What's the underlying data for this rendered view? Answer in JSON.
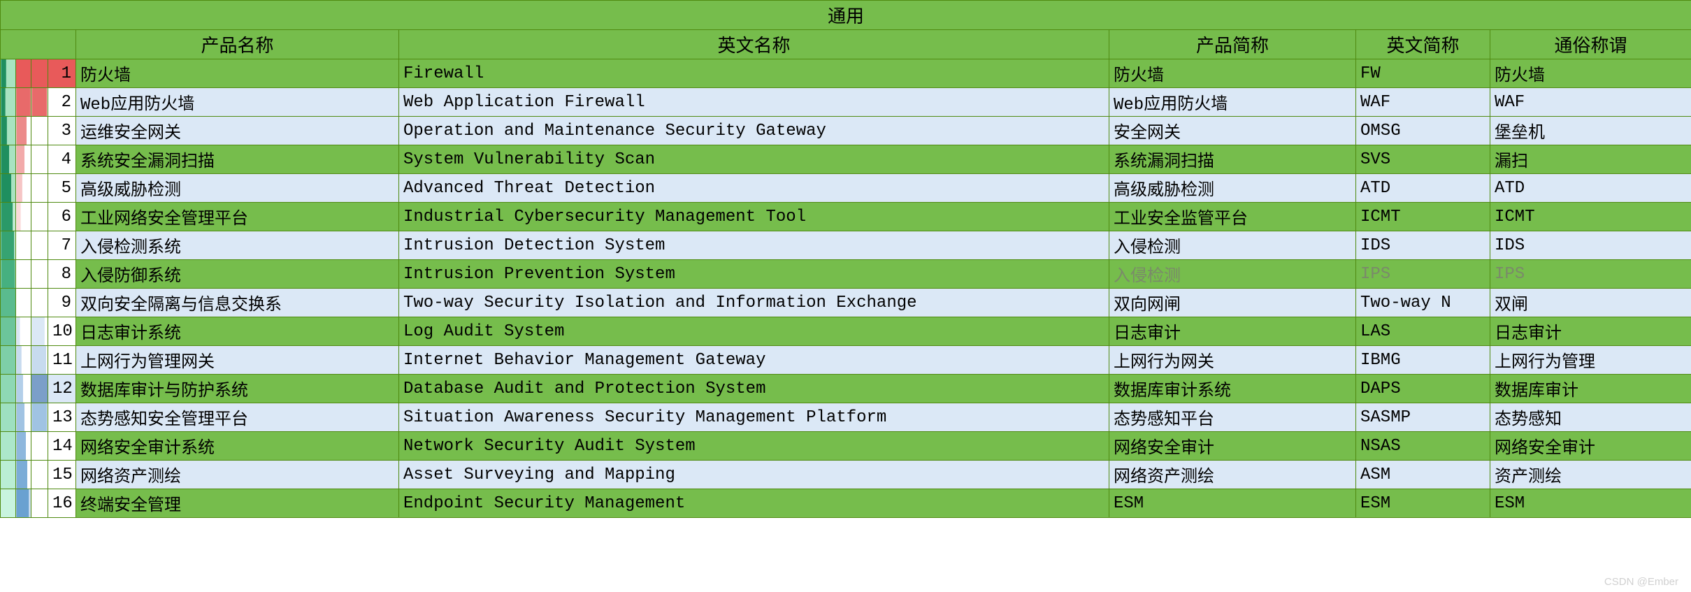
{
  "title": "通用",
  "headers": {
    "product_name": "产品名称",
    "english_name": "英文名称",
    "product_abbr": "产品简称",
    "english_abbr": "英文简称",
    "common_name": "通俗称谓"
  },
  "colors": {
    "green_row": "#76bd4c",
    "blue_row": "#dbe8f6",
    "border": "#4f8a10",
    "text": "#000000",
    "muted_text": "#7a8a6a",
    "idx_green_dark": "#1f8f5f",
    "idx_green_light": "#a8e3c1",
    "idx_red_dark": "#e85a5a",
    "idx_red_light": "#ffffff",
    "idx_blue_mid": "#7b9fc9",
    "idx_blue_light": "#dbe8f6",
    "white": "#ffffff"
  },
  "index_gradients": [
    {
      "col1": [
        "#1f8f5f",
        "#a8e3c1",
        0.35
      ],
      "col2": [
        "#e85a5a",
        "#e85a5a",
        1.0
      ],
      "col3": [
        "#e85a5a",
        "#e85a5a",
        1.0
      ]
    },
    {
      "col1": [
        "#1f8f5f",
        "#a8e3c1",
        0.3
      ],
      "col2": [
        "#e86a6a",
        "#f6b6b6",
        0.95
      ],
      "col3": [
        "#e86a6a",
        "#ffffff",
        0.95
      ]
    },
    {
      "col1": [
        "#1f8f5f",
        "#a8e3c1",
        0.4
      ],
      "col2": [
        "#ec8a8a",
        "#ffffff",
        0.7
      ],
      "col3": [
        "#ffffff",
        "#ffffff",
        1.0
      ]
    },
    {
      "col1": [
        "#1f8f5f",
        "#a8e3c1",
        0.55
      ],
      "col2": [
        "#f2aaaa",
        "#ffffff",
        0.55
      ],
      "col3": [
        "#ffffff",
        "#ffffff",
        1.0
      ]
    },
    {
      "col1": [
        "#1f8f5f",
        "#a8e3c1",
        0.7
      ],
      "col2": [
        "#f6c5c5",
        "#ffffff",
        0.4
      ],
      "col3": [
        "#ffffff",
        "#ffffff",
        1.0
      ]
    },
    {
      "col1": [
        "#2a9968",
        "#c0ecd3",
        0.8
      ],
      "col2": [
        "#fadada",
        "#ffffff",
        0.3
      ],
      "col3": [
        "#ffffff",
        "#ffffff",
        1.0
      ]
    },
    {
      "col1": [
        "#36a372",
        "#d3f2e0",
        0.9
      ],
      "col2": [
        "#ffffff",
        "#ffffff",
        1.0
      ],
      "col3": [
        "#ffffff",
        "#ffffff",
        1.0
      ]
    },
    {
      "col1": [
        "#46b080",
        "#e2f7eb",
        0.95
      ],
      "col2": [
        "#ffffff",
        "#ffffff",
        1.0
      ],
      "col3": [
        "#ffffff",
        "#ffffff",
        1.0
      ]
    },
    {
      "col1": [
        "#5abb8e",
        "#ecfaf2",
        1.0
      ],
      "col2": [
        "#ffffff",
        "#ffffff",
        1.0
      ],
      "col3": [
        "#ffffff",
        "#ffffff",
        1.0
      ]
    },
    {
      "col1": [
        "#6cc59b",
        "#f2fcf6",
        1.0
      ],
      "col2": [
        "#d9e6f4",
        "#ffffff",
        0.25
      ],
      "col3": [
        "#dbe8f6",
        "#ffffff",
        0.8
      ]
    },
    {
      "col1": [
        "#7ecfa8",
        "#f6fdf9",
        1.0
      ],
      "col2": [
        "#c7dbef",
        "#ffffff",
        0.35
      ],
      "col3": [
        "#c7dbef",
        "#ffffff",
        0.9
      ]
    },
    {
      "col1": [
        "#8ed8b4",
        "#fafefb",
        1.0
      ],
      "col2": [
        "#b3cfe9",
        "#ffffff",
        0.45
      ],
      "col3": [
        "#7b9fc9",
        "#dbe8f6",
        1.0
      ]
    },
    {
      "col1": [
        "#9ee0c0",
        "#ffffff",
        1.0
      ],
      "col2": [
        "#a0c3e3",
        "#ffffff",
        0.55
      ],
      "col3": [
        "#a0c3e3",
        "#ffffff",
        0.95
      ]
    },
    {
      "col1": [
        "#ace7ca",
        "#ffffff",
        1.0
      ],
      "col2": [
        "#8eb7dd",
        "#ffffff",
        0.65
      ],
      "col3": [
        "#ffffff",
        "#ffffff",
        1.0
      ]
    },
    {
      "col1": [
        "#baeed4",
        "#ffffff",
        1.0
      ],
      "col2": [
        "#7bacD7",
        "#ffffff",
        0.75
      ],
      "col3": [
        "#ffffff",
        "#ffffff",
        1.0
      ]
    },
    {
      "col1": [
        "#c8f4de",
        "#ffffff",
        1.0
      ],
      "col2": [
        "#6aa1d1",
        "#d0e1f2",
        0.85
      ],
      "col3": [
        "#ffffff",
        "#ffffff",
        1.0
      ]
    }
  ],
  "rows": [
    {
      "n": 1,
      "style": "green",
      "product": "防火墙",
      "english": "Firewall",
      "abbr": "防火墙",
      "eabbr": "FW",
      "common": "防火墙"
    },
    {
      "n": 2,
      "style": "blue",
      "product": "Web应用防火墙",
      "english": "Web Application Firewall",
      "abbr": "Web应用防火墙",
      "eabbr": "WAF",
      "common": "WAF"
    },
    {
      "n": 3,
      "style": "blue",
      "product": "运维安全网关",
      "english": "Operation and Maintenance Security Gateway",
      "abbr": "安全网关",
      "eabbr": "OMSG",
      "common": "堡垒机"
    },
    {
      "n": 4,
      "style": "green",
      "product": "系统安全漏洞扫描",
      "english": "System Vulnerability Scan",
      "abbr": "系统漏洞扫描",
      "eabbr": "SVS",
      "common": "漏扫"
    },
    {
      "n": 5,
      "style": "blue",
      "product": "高级威胁检测",
      "english": "Advanced Threat Detection",
      "abbr": "高级威胁检测",
      "eabbr": "ATD",
      "common": "ATD"
    },
    {
      "n": 6,
      "style": "green",
      "product": "工业网络安全管理平台",
      "english": "Industrial Cybersecurity Management Tool",
      "abbr": "工业安全监管平台",
      "eabbr": "ICMT",
      "common": "ICMT"
    },
    {
      "n": 7,
      "style": "blue",
      "product": "入侵检测系统",
      "english": "Intrusion Detection System",
      "abbr": "入侵检测",
      "eabbr": "IDS",
      "common": "IDS"
    },
    {
      "n": 8,
      "style": "green",
      "product": "入侵防御系统",
      "english": "Intrusion Prevention System",
      "abbr": "入侵检测",
      "eabbr": "IPS",
      "common": "IPS",
      "muted_cols": [
        "abbr",
        "eabbr",
        "common"
      ]
    },
    {
      "n": 9,
      "style": "blue",
      "product": "双向安全隔离与信息交换系",
      "english": "Two-way Security Isolation and Information Exchange",
      "abbr": "双向网闸",
      "eabbr": "Two-way N",
      "common": "双闸"
    },
    {
      "n": 10,
      "style": "green",
      "product": "日志审计系统",
      "english": "Log Audit System",
      "abbr": "日志审计",
      "eabbr": "LAS",
      "common": "日志审计"
    },
    {
      "n": 11,
      "style": "blue",
      "product": "上网行为管理网关",
      "english": "Internet Behavior Management Gateway",
      "abbr": "上网行为网关",
      "eabbr": "IBMG",
      "common": "上网行为管理"
    },
    {
      "n": 12,
      "style": "green",
      "product": "数据库审计与防护系统",
      "english": "Database Audit and Protection System",
      "abbr": "数据库审计系统",
      "eabbr": "DAPS",
      "common": "数据库审计"
    },
    {
      "n": 13,
      "style": "blue",
      "product": "态势感知安全管理平台",
      "english": "Situation Awareness Security Management Platform",
      "abbr": "态势感知平台",
      "eabbr": "SASMP",
      "common": "态势感知"
    },
    {
      "n": 14,
      "style": "green",
      "product": "网络安全审计系统",
      "english": "Network Security Audit System",
      "abbr": "网络安全审计",
      "eabbr": "NSAS",
      "common": "网络安全审计"
    },
    {
      "n": 15,
      "style": "blue",
      "product": "网络资产测绘",
      "english": "Asset Surveying and Mapping",
      "abbr": "网络资产测绘",
      "eabbr": "ASM",
      "common": "资产测绘"
    },
    {
      "n": 16,
      "style": "green",
      "product": "终端安全管理",
      "english": "Endpoint Security Management",
      "abbr": "ESM",
      "eabbr": "ESM",
      "common": "ESM"
    }
  ],
  "watermark": "CSDN @Ember"
}
